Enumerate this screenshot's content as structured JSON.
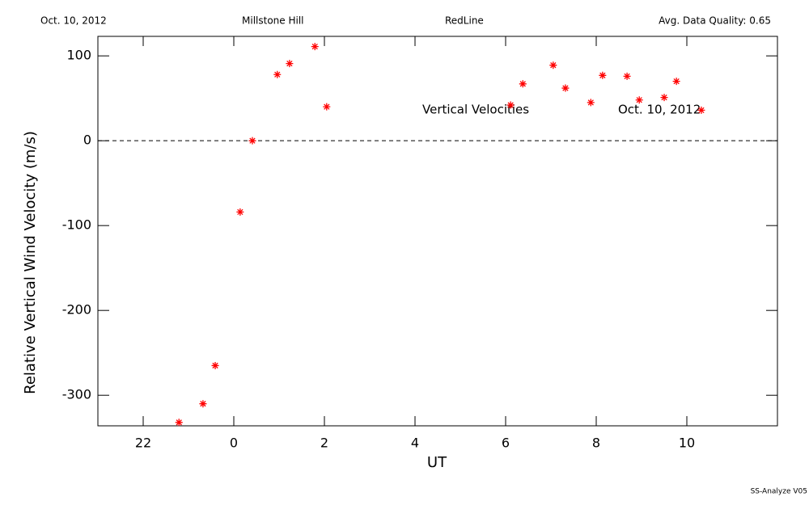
{
  "chart_data": {
    "type": "scatter",
    "header": [
      "Oct. 10, 2012",
      "Millstone Hill",
      "RedLine",
      "Avg. Data Quality: 0.65"
    ],
    "annotations": [
      "Vertical Velocities",
      "Oct. 10, 2012"
    ],
    "footer": "SS-Analyze V05",
    "x_label": "UT",
    "y_label": "Relative Vertical Wind Velocity (m/s)",
    "x": [
      -1.21,
      -0.68,
      -0.41,
      0.14,
      0.41,
      0.96,
      1.23,
      1.79,
      2.05,
      6.11,
      6.38,
      7.05,
      7.32,
      7.88,
      8.14,
      8.68,
      8.95,
      9.5,
      9.77,
      10.32
    ],
    "values": [
      -332,
      -310,
      -265,
      -84,
      0,
      78,
      91,
      111,
      40,
      42,
      67,
      89,
      62,
      45,
      77,
      76,
      48,
      51,
      70,
      36
    ],
    "color": "#ff0000",
    "marker": "asterisk",
    "xlim": [
      -3,
      12
    ],
    "ylim": [
      -336,
      123
    ],
    "xticks": [
      {
        "value": -2,
        "label": "22"
      },
      0,
      2,
      4,
      6,
      8,
      10
    ],
    "yticks": [
      -300,
      -200,
      -100,
      0,
      100
    ],
    "hline": 0
  }
}
